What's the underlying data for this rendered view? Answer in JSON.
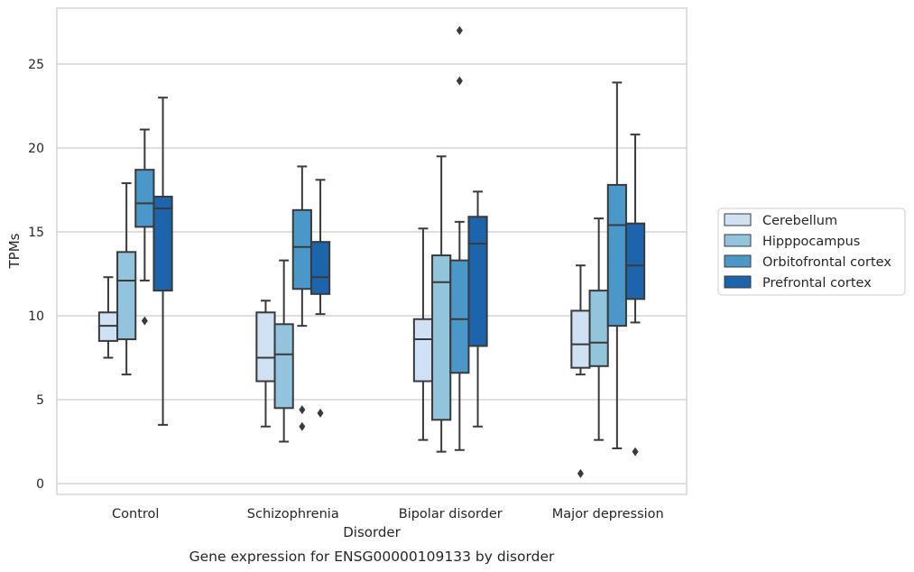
{
  "chart_data": {
    "type": "box",
    "caption": "Gene expression for ENSG00000109133 by disorder",
    "xlabel": "Disorder",
    "ylabel": "TPMs",
    "ylim": [
      -0.6,
      28.2
    ],
    "yticks": [
      0,
      5,
      10,
      15,
      20,
      25
    ],
    "grid": "horizontal",
    "legend_position": "right",
    "categories": [
      "Control",
      "Schizophrenia",
      "Bipolar disorder",
      "Major depression"
    ],
    "series": [
      {
        "name": "Cerebellum",
        "color": "#cfe1f2",
        "boxes": [
          {
            "whisker_low": 7.5,
            "q1": 8.5,
            "median": 9.4,
            "q3": 10.2,
            "whisker_high": 12.3,
            "outliers": []
          },
          {
            "whisker_low": 3.4,
            "q1": 6.1,
            "median": 7.5,
            "q3": 10.2,
            "whisker_high": 10.9,
            "outliers": []
          },
          {
            "whisker_low": 2.6,
            "q1": 6.1,
            "median": 8.6,
            "q3": 9.8,
            "whisker_high": 15.2,
            "outliers": []
          },
          {
            "whisker_low": 6.5,
            "q1": 6.9,
            "median": 8.3,
            "q3": 10.3,
            "whisker_high": 13.0,
            "outliers": [
              0.6
            ]
          }
        ]
      },
      {
        "name": "Hipppocampus",
        "color": "#93c4de",
        "boxes": [
          {
            "whisker_low": 6.5,
            "q1": 8.6,
            "median": 12.1,
            "q3": 13.8,
            "whisker_high": 17.9,
            "outliers": []
          },
          {
            "whisker_low": 2.5,
            "q1": 4.5,
            "median": 7.7,
            "q3": 9.5,
            "whisker_high": 13.3,
            "outliers": []
          },
          {
            "whisker_low": 1.9,
            "q1": 3.8,
            "median": 12.0,
            "q3": 13.6,
            "whisker_high": 19.5,
            "outliers": []
          },
          {
            "whisker_low": 2.6,
            "q1": 7.0,
            "median": 8.4,
            "q3": 11.5,
            "whisker_high": 15.8,
            "outliers": []
          }
        ]
      },
      {
        "name": "Orbitofrontal cortex",
        "color": "#4a98c9",
        "boxes": [
          {
            "whisker_low": 12.1,
            "q1": 15.3,
            "median": 16.7,
            "q3": 18.7,
            "whisker_high": 21.1,
            "outliers": [
              9.7
            ]
          },
          {
            "whisker_low": 9.4,
            "q1": 11.6,
            "median": 14.1,
            "q3": 16.3,
            "whisker_high": 18.9,
            "outliers": [
              4.4,
              3.4
            ]
          },
          {
            "whisker_low": 2.0,
            "q1": 6.6,
            "median": 9.8,
            "q3": 13.3,
            "whisker_high": 15.6,
            "outliers": [
              27.0,
              24.0
            ]
          },
          {
            "whisker_low": 2.1,
            "q1": 9.4,
            "median": 15.4,
            "q3": 17.8,
            "whisker_high": 23.9,
            "outliers": []
          }
        ]
      },
      {
        "name": "Prefrontal cortex",
        "color": "#1c64ab",
        "boxes": [
          {
            "whisker_low": 3.5,
            "q1": 11.5,
            "median": 16.4,
            "q3": 17.1,
            "whisker_high": 23.0,
            "outliers": []
          },
          {
            "whisker_low": 10.1,
            "q1": 11.3,
            "median": 12.3,
            "q3": 14.4,
            "whisker_high": 18.1,
            "outliers": [
              4.2
            ]
          },
          {
            "whisker_low": 3.4,
            "q1": 8.2,
            "median": 14.3,
            "q3": 15.9,
            "whisker_high": 17.4,
            "outliers": []
          },
          {
            "whisker_low": 9.6,
            "q1": 11.0,
            "median": 13.0,
            "q3": 15.5,
            "whisker_high": 20.8,
            "outliers": [
              1.9
            ]
          }
        ]
      }
    ]
  }
}
